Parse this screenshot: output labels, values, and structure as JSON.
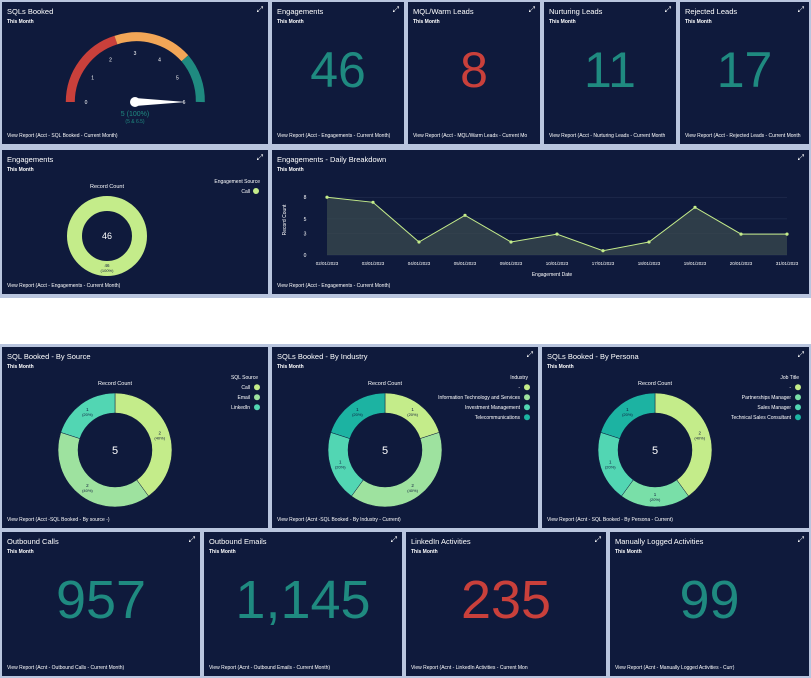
{
  "colors": {
    "teal": "#1f8a80",
    "red": "#c9403b",
    "lime": "#c4ec8a",
    "light_green": "#9ee29f",
    "mint": "#52d6b3",
    "mid_green": "#79dfa8",
    "dark_teal": "#1cb3a2"
  },
  "gauge": {
    "title": "SQLs Booked",
    "subtitle": "This Month",
    "ticks": [
      "0",
      "1",
      "2",
      "3",
      "4",
      "5",
      "6"
    ],
    "value": "5 (100%)",
    "target": "(5 & 6.5)",
    "link": "View Report (Acct - SQL Booked - Current Month)"
  },
  "kpis_top": [
    {
      "title": "Engagements",
      "subtitle": "This Month",
      "value": "46",
      "link": "View Report (Acct - Engagements - Current Month)"
    },
    {
      "title": "MQL/Warm Leads",
      "subtitle": "This Month",
      "value": "8",
      "link": "View Report (Acct - MQL/Warm Leads - Current Mo"
    },
    {
      "title": "Nurturing Leads",
      "subtitle": "This Month",
      "value": "11",
      "link": "View Report (Acct - Nurturing Leads - Current Month"
    },
    {
      "title": "Rejected Leads",
      "subtitle": "This Month",
      "value": "17",
      "link": "View Report (Acct - Rejected Leads - Current Month"
    }
  ],
  "engagement_donut": {
    "title": "Engagements",
    "subtitle": "This Month",
    "center_title": "Record Count",
    "center_value": "46",
    "legend_title": "Engagement Source",
    "legend": [
      "Call"
    ],
    "slice_label": "46",
    "slice_pct": "(100%)",
    "link": "View Report (Acct - Engagements - Current Month)"
  },
  "line_chart": {
    "title": "Engagements - Daily Breakdown",
    "subtitle": "This Month",
    "link": "View Report (Acct - Engagements - Current Month)"
  },
  "chart_data": {
    "type": "area",
    "title": "Engagements - Daily Breakdown",
    "xlabel": "Engagement Date",
    "ylabel": "Record Count",
    "categories": [
      "02/01/2023",
      "03/01/2023",
      "04/01/2023",
      "05/01/2023",
      "09/01/2023",
      "10/01/2023",
      "17/01/2023",
      "18/01/2023",
      "19/01/2023",
      "20/01/2023",
      "31/01/2023"
    ],
    "values": [
      8,
      7.3,
      1.8,
      5.5,
      1.8,
      2.9,
      0.6,
      1.8,
      6.6,
      2.9,
      2.9
    ],
    "yticks": [
      "0",
      "3",
      "5",
      "8"
    ],
    "ylim": [
      0,
      9
    ],
    "grid": true
  },
  "donuts": [
    {
      "title": "SQL Booked - By Source",
      "subtitle": "This Month",
      "center_title": "Record Count",
      "center_value": "5",
      "legend_title": "SQL Source",
      "legend": [
        "Call",
        "Email",
        "LinkedIn"
      ],
      "slices": [
        {
          "value": 2,
          "label": "2",
          "pct": "(40%)"
        },
        {
          "value": 2,
          "label": "2",
          "pct": "(40%)"
        },
        {
          "value": 1,
          "label": "1",
          "pct": "(20%)"
        }
      ],
      "link": "View Report (Acct -SQL Booked - By source -)"
    },
    {
      "title": "SQLs Booked - By Industry",
      "subtitle": "This Month",
      "center_title": "Record Count",
      "center_value": "5",
      "legend_title": "Industry",
      "legend": [
        "-",
        "Information Technology and Services",
        "Investment Management",
        "Telecommunications"
      ],
      "slices": [
        {
          "value": 1,
          "label": "1",
          "pct": "(20%)"
        },
        {
          "value": 2,
          "label": "2",
          "pct": "(40%)"
        },
        {
          "value": 1,
          "label": "1",
          "pct": "(20%)"
        },
        {
          "value": 1,
          "label": "1",
          "pct": "(20%)"
        }
      ],
      "link": "View Report (Acnt -SQL Booked - By Industry - Current)"
    },
    {
      "title": "SQLs Booked - By Persona",
      "subtitle": "This Month",
      "center_title": "Record Count",
      "center_value": "5",
      "legend_title": "Job Title",
      "legend": [
        "-",
        "Partnerships Manager",
        "Sales Manager",
        "Technical Sales Consultant"
      ],
      "slices": [
        {
          "value": 2,
          "label": "2",
          "pct": "(40%)"
        },
        {
          "value": 1,
          "label": "1",
          "pct": "(20%)"
        },
        {
          "value": 1,
          "label": "1",
          "pct": "(20%)"
        },
        {
          "value": 1,
          "label": "1",
          "pct": "(20%)"
        }
      ],
      "link": "View Report (Acnt - SQL Booked - By Persona - Current)"
    }
  ],
  "kpis_bottom": [
    {
      "title": "Outbound Calls",
      "subtitle": "This Month",
      "value": "957",
      "link": "View Report (Acnt - Outbound Calls - Current Month)"
    },
    {
      "title": "Outbound Emails",
      "subtitle": "This Month",
      "value": "1,145",
      "link": "View Report (Acnt - Outbound Emails - Current Month)"
    },
    {
      "title": "LinkedIn Activities",
      "subtitle": "This Month",
      "value": "235",
      "link": "View Report (Acnt - LinkedIn Activities - Current Mon"
    },
    {
      "title": "Manually Logged Activities",
      "subtitle": "This Month",
      "value": "99",
      "link": "View Report (Acnt - Manually Logged Activities - Curr)"
    }
  ]
}
